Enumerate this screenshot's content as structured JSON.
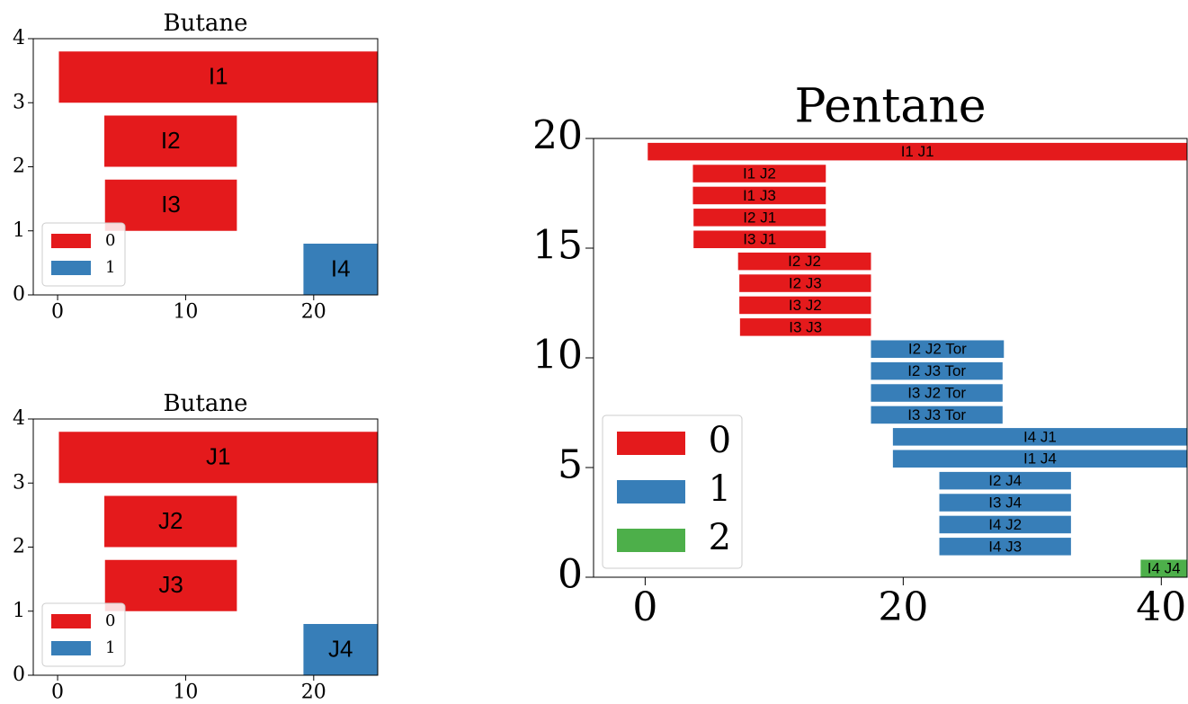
{
  "chart_data": [
    {
      "type": "gantt",
      "title": "Butane",
      "xlim": [
        -1.9,
        25
      ],
      "xticks": [
        0,
        10,
        20
      ],
      "ylim": [
        0,
        4
      ],
      "yticks": [
        0,
        1,
        2,
        3,
        4
      ],
      "bar_height": 0.8,
      "legend": "lower left",
      "series": [
        {
          "name": "0",
          "color": "#e41a1c",
          "bars": [
            {
              "label": "I1",
              "start": 0.1,
              "end": 30,
              "y": 3
            },
            {
              "label": "I2",
              "start": 3.65,
              "end": 14.0,
              "y": 2
            },
            {
              "label": "I3",
              "start": 3.7,
              "end": 14.0,
              "y": 1
            }
          ]
        },
        {
          "name": "1",
          "color": "#377eb8",
          "bars": [
            {
              "label": "I4",
              "start": 19.2,
              "end": 30,
              "y": 0
            }
          ]
        }
      ]
    },
    {
      "type": "gantt",
      "title": "Butane",
      "xlim": [
        -1.9,
        25
      ],
      "xticks": [
        0,
        10,
        20
      ],
      "ylim": [
        0,
        4
      ],
      "yticks": [
        0,
        1,
        2,
        3,
        4
      ],
      "bar_height": 0.8,
      "legend": "lower left",
      "series": [
        {
          "name": "0",
          "color": "#e41a1c",
          "bars": [
            {
              "label": "J1",
              "start": 0.1,
              "end": 30,
              "y": 3
            },
            {
              "label": "J2",
              "start": 3.65,
              "end": 14.0,
              "y": 2
            },
            {
              "label": "J3",
              "start": 3.7,
              "end": 14.0,
              "y": 1
            }
          ]
        },
        {
          "name": "1",
          "color": "#377eb8",
          "bars": [
            {
              "label": "J4",
              "start": 19.2,
              "end": 30,
              "y": 0
            }
          ]
        }
      ]
    },
    {
      "type": "gantt",
      "title": "Pentane",
      "xlim": [
        -4,
        42
      ],
      "xticks": [
        0,
        20,
        40
      ],
      "ylim": [
        0,
        20
      ],
      "yticks": [
        0,
        5,
        10,
        15,
        20
      ],
      "bar_height": 0.8,
      "legend": "lower left",
      "series": [
        {
          "name": "0",
          "color": "#e41a1c",
          "bars": [
            {
              "label": "I1 J1",
              "start": 0.2,
              "end": 45,
              "y": 19
            },
            {
              "label": "I1 J2",
              "start": 3.7,
              "end": 14.0,
              "y": 18
            },
            {
              "label": "I1 J3",
              "start": 3.7,
              "end": 14.0,
              "y": 17
            },
            {
              "label": "I2 J1",
              "start": 3.75,
              "end": 14.0,
              "y": 16
            },
            {
              "label": "I3 J1",
              "start": 3.75,
              "end": 14.0,
              "y": 15
            },
            {
              "label": "I2 J2",
              "start": 7.2,
              "end": 17.5,
              "y": 14
            },
            {
              "label": "I2 J3",
              "start": 7.3,
              "end": 17.5,
              "y": 13
            },
            {
              "label": "I3 J2",
              "start": 7.3,
              "end": 17.5,
              "y": 12
            },
            {
              "label": "I3 J3",
              "start": 7.35,
              "end": 17.5,
              "y": 11
            }
          ]
        },
        {
          "name": "1",
          "color": "#377eb8",
          "bars": [
            {
              "label": "I2 J2 Tor",
              "start": 17.5,
              "end": 27.8,
              "y": 10
            },
            {
              "label": "I2 J3 Tor",
              "start": 17.5,
              "end": 27.7,
              "y": 9
            },
            {
              "label": "I3 J2 Tor",
              "start": 17.5,
              "end": 27.7,
              "y": 8
            },
            {
              "label": "I3 J3 Tor",
              "start": 17.5,
              "end": 27.7,
              "y": 7
            },
            {
              "label": "I4 J1",
              "start": 19.2,
              "end": 45,
              "y": 6
            },
            {
              "label": "I1 J4",
              "start": 19.2,
              "end": 45,
              "y": 5
            },
            {
              "label": "I2 J4",
              "start": 22.8,
              "end": 33.0,
              "y": 4
            },
            {
              "label": "I3 J4",
              "start": 22.8,
              "end": 33.0,
              "y": 3
            },
            {
              "label": "I4 J2",
              "start": 22.8,
              "end": 33.0,
              "y": 2
            },
            {
              "label": "I4 J3",
              "start": 22.8,
              "end": 33.0,
              "y": 1
            }
          ]
        },
        {
          "name": "2",
          "color": "#4daf4a",
          "bars": [
            {
              "label": "I4 J4",
              "start": 38.4,
              "end": 45,
              "y": 0
            }
          ]
        }
      ]
    }
  ]
}
